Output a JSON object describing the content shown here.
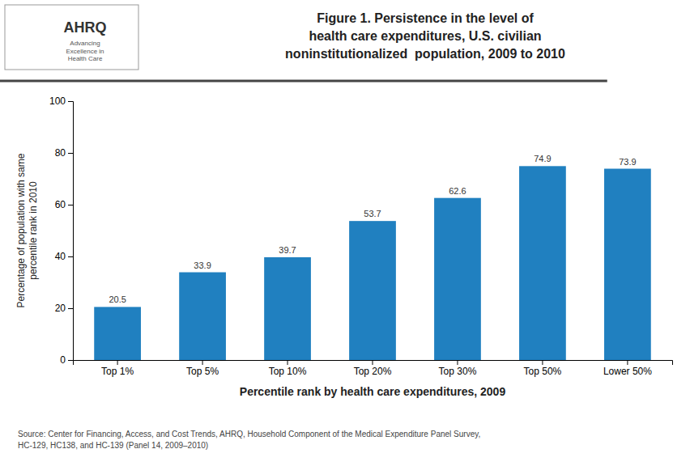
{
  "chart_data": {
    "type": "bar",
    "title": "Figure 1. Persistence in the level of\nhealth care expenditures, U.S. civilian\nnoninstitutionalized  population, 2009 to 2010",
    "categories": [
      "Top 1%",
      "Top 5%",
      "Top 10%",
      "Top 20%",
      "Top 30%",
      "Top 50%",
      "Lower 50%"
    ],
    "values": [
      20.5,
      33.9,
      39.7,
      53.7,
      62.6,
      74.9,
      73.9
    ],
    "color": "#2080C0",
    "x_label": "Percentile rank by health care expenditures, 2009",
    "y_label": "Percentage of population with same\npercentile rank in 2010",
    "ylim": [
      0,
      100
    ],
    "yticks": [
      0,
      20,
      40,
      60,
      80,
      100
    ],
    "grid": false,
    "data_labels": true,
    "annotations": [
      "AHRQ",
      "Advancing\nExcellence in\nHealth Care",
      "Source: Center for Financing, Access, and Cost Trends, AHRQ, Household Component of the Medical Expenditure Panel Survey,\nHC-129, HC138, and HC-139 (Panel 14, 2009–2010)"
    ]
  }
}
